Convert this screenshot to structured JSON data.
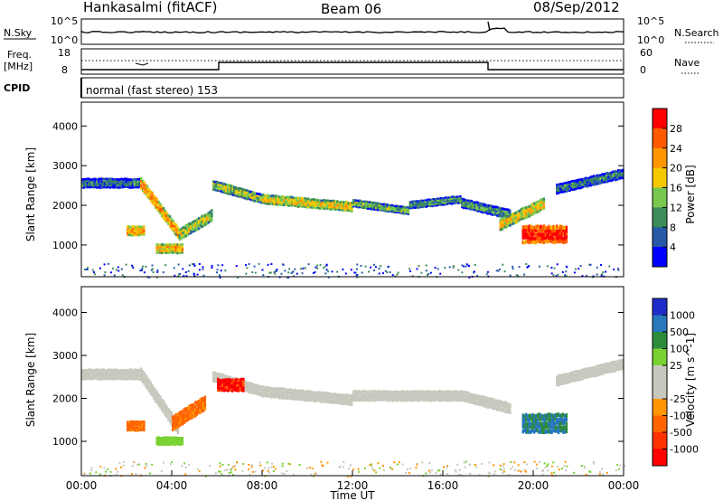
{
  "header": {
    "station": "Hankasalmi (fitACF)",
    "beam": "Beam 06",
    "date": "08/Sep/2012"
  },
  "panels": {
    "noise": {
      "left_label": "N.Sky",
      "right_label": "N.Search",
      "left_ticks": [
        "10^5",
        "10^0"
      ],
      "right_ticks": [
        "10^5",
        "10^0"
      ]
    },
    "freq": {
      "left_label_1": "Freq.",
      "left_label_2": "[MHz]",
      "left_ticks": [
        "18",
        "8"
      ],
      "right_label": "Nave",
      "right_ticks": [
        "60",
        "0"
      ]
    },
    "cpid": {
      "label": "CPID",
      "mode_text": "normal (fast stereo) 153"
    }
  },
  "colorbars": {
    "power": {
      "label": "Power [dB]",
      "ticks": [
        "28",
        "24",
        "20",
        "16",
        "12",
        "8",
        "4"
      ],
      "colors": [
        "#ff0000",
        "#ff5a00",
        "#ff9600",
        "#f5c800",
        "#78c850",
        "#3c8c5a",
        "#285aaa",
        "#0000ff"
      ]
    },
    "velocity": {
      "label": "Velocity [m s^-1]",
      "ticks": [
        "1000",
        "500",
        "100",
        "25",
        "-25",
        "-100",
        "-500",
        "-1000"
      ],
      "colors": [
        "#1e2dc8",
        "#2878be",
        "#2d8c3c",
        "#78d232",
        "#c8c8be",
        "#c8c8be",
        "#ff9600",
        "#ff6400",
        "#ff3200",
        "#ff0000"
      ]
    }
  },
  "chart_data": [
    {
      "type": "heatmap",
      "name_hint": "power",
      "ylabel": "Slant Range [km]",
      "ylim": [
        200,
        4600
      ],
      "yticks": [
        "4000",
        "3000",
        "2000",
        "1000"
      ],
      "xlim": [
        0,
        24
      ],
      "cbar_label": "Power [dB]",
      "cbar_range": [
        2,
        32
      ],
      "echo_bands": [
        {
          "t0": 0.0,
          "t1": 2.6,
          "r0": 2550,
          "r1": 2550,
          "w": 250,
          "v": 8
        },
        {
          "t0": 2.6,
          "t1": 4.3,
          "r0": 2550,
          "r1": 1250,
          "w": 300,
          "v": 22
        },
        {
          "t0": 4.3,
          "t1": 5.8,
          "r0": 1250,
          "r1": 1750,
          "w": 300,
          "v": 16
        },
        {
          "t0": 5.8,
          "t1": 8.0,
          "r0": 2500,
          "r1": 2150,
          "w": 250,
          "v": 14
        },
        {
          "t0": 8.0,
          "t1": 12.0,
          "r0": 2150,
          "r1": 1950,
          "w": 250,
          "v": 18
        },
        {
          "t0": 12.0,
          "t1": 14.5,
          "r0": 2050,
          "r1": 1850,
          "w": 200,
          "v": 12
        },
        {
          "t0": 14.5,
          "t1": 16.8,
          "r0": 2000,
          "r1": 2150,
          "w": 200,
          "v": 10
        },
        {
          "t0": 16.8,
          "t1": 19.0,
          "r0": 2050,
          "r1": 1750,
          "w": 250,
          "v": 10
        },
        {
          "t0": 18.5,
          "t1": 20.5,
          "r0": 1500,
          "r1": 2050,
          "w": 300,
          "v": 18
        },
        {
          "t0": 19.5,
          "t1": 21.5,
          "r0": 1250,
          "r1": 1250,
          "w": 450,
          "v": 30
        },
        {
          "t0": 21.0,
          "t1": 24.0,
          "r0": 2400,
          "r1": 2800,
          "w": 250,
          "v": 8
        },
        {
          "t0": 2.0,
          "t1": 2.8,
          "r0": 1350,
          "r1": 1350,
          "w": 250,
          "v": 22
        },
        {
          "t0": 3.3,
          "t1": 4.5,
          "r0": 900,
          "r1": 900,
          "w": 250,
          "v": 20
        }
      ]
    },
    {
      "type": "heatmap",
      "name_hint": "velocity",
      "ylabel": "Slant Range [km]",
      "ylim": [
        200,
        4600
      ],
      "yticks": [
        "4000",
        "3000",
        "2000",
        "1000"
      ],
      "xlim": [
        0,
        24
      ],
      "xticks": [
        "00:00",
        "04:00",
        "08:00",
        "12:00",
        "16:00",
        "20:00",
        "00:00"
      ],
      "xlabel": "Time UT",
      "cbar_label": "Velocity [m s^-1]",
      "echo_bands": [
        {
          "t0": 0.0,
          "t1": 2.6,
          "r0": 2550,
          "r1": 2550,
          "w": 250,
          "v": 0
        },
        {
          "t0": 2.6,
          "t1": 4.3,
          "r0": 2550,
          "r1": 1250,
          "w": 300,
          "v": 0
        },
        {
          "t0": 4.0,
          "t1": 5.5,
          "r0": 1400,
          "r1": 1900,
          "w": 350,
          "v": -200
        },
        {
          "t0": 5.8,
          "t1": 8.0,
          "r0": 2500,
          "r1": 2150,
          "w": 250,
          "v": 0
        },
        {
          "t0": 6.0,
          "t1": 7.2,
          "r0": 2300,
          "r1": 2300,
          "w": 300,
          "v": -600
        },
        {
          "t0": 8.0,
          "t1": 12.0,
          "r0": 2150,
          "r1": 1950,
          "w": 250,
          "v": 0
        },
        {
          "t0": 12.0,
          "t1": 16.8,
          "r0": 2050,
          "r1": 2050,
          "w": 250,
          "v": 0
        },
        {
          "t0": 16.8,
          "t1": 19.0,
          "r0": 2050,
          "r1": 1750,
          "w": 250,
          "v": 0
        },
        {
          "t0": 19.5,
          "t1": 21.5,
          "r0": 1400,
          "r1": 1400,
          "w": 450,
          "v": 300
        },
        {
          "t0": 21.0,
          "t1": 24.0,
          "r0": 2400,
          "r1": 2800,
          "w": 250,
          "v": 0
        },
        {
          "t0": 2.0,
          "t1": 2.8,
          "r0": 1350,
          "r1": 1350,
          "w": 250,
          "v": -200
        },
        {
          "t0": 3.3,
          "t1": 4.5,
          "r0": 1000,
          "r1": 1000,
          "w": 200,
          "v": 50
        }
      ]
    }
  ]
}
